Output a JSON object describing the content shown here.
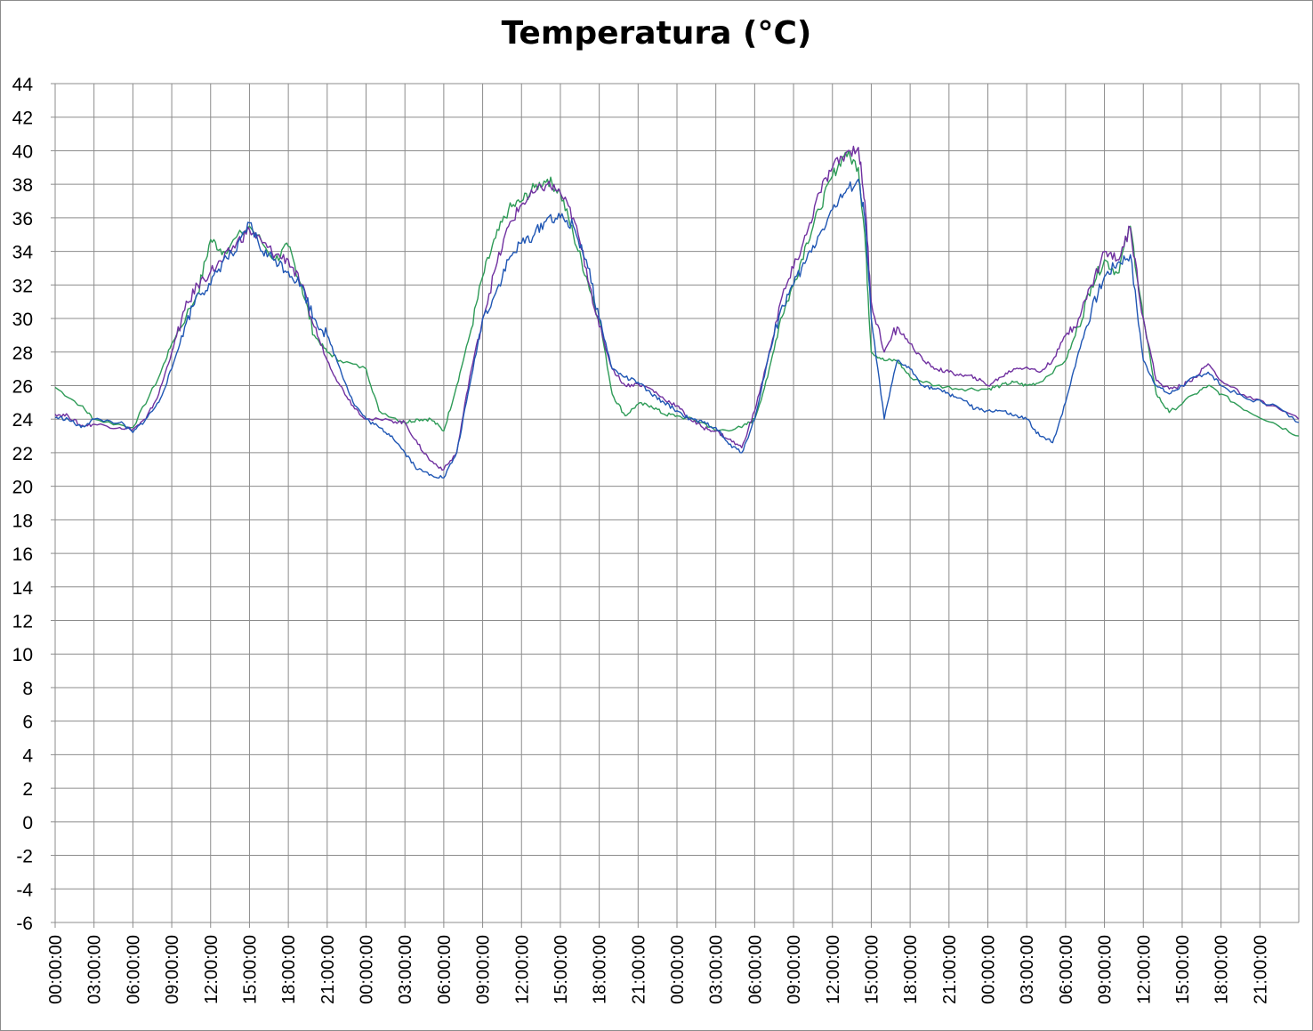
{
  "chart_data": {
    "type": "line",
    "title": "Temperatura (°C)",
    "xlabel": "",
    "ylabel": "",
    "ylim": [
      -6,
      44
    ],
    "y_ticks": [
      -6,
      -4,
      -2,
      0,
      2,
      4,
      6,
      8,
      10,
      12,
      14,
      16,
      18,
      20,
      22,
      24,
      26,
      28,
      30,
      32,
      34,
      36,
      38,
      40,
      42,
      44
    ],
    "x_unit": "hours from first tick",
    "xlim": [
      0,
      96
    ],
    "x_ticks": [
      "00:00:00",
      "03:00:00",
      "06:00:00",
      "09:00:00",
      "12:00:00",
      "15:00:00",
      "18:00:00",
      "21:00:00",
      "00:00:00",
      "03:00:00",
      "06:00:00",
      "09:00:00",
      "12:00:00",
      "15:00:00",
      "18:00:00",
      "21:00:00",
      "00:00:00",
      "03:00:00",
      "06:00:00",
      "09:00:00",
      "12:00:00",
      "15:00:00",
      "18:00:00",
      "21:00:00",
      "00:00:00",
      "03:00:00",
      "06:00:00",
      "09:00:00",
      "12:00:00",
      "15:00:00",
      "18:00:00",
      "21:00:00"
    ],
    "grid": true,
    "legend": "none",
    "series": [
      {
        "color": "#2e9b57",
        "points": [
          [
            0,
            25.9
          ],
          [
            2,
            24.8
          ],
          [
            3,
            24.0
          ],
          [
            6,
            23.5
          ],
          [
            8,
            26.5
          ],
          [
            9,
            28.5
          ],
          [
            11,
            31.5
          ],
          [
            12,
            34.7
          ],
          [
            13,
            34.0
          ],
          [
            15,
            35.5
          ],
          [
            17,
            33.5
          ],
          [
            18,
            34.3
          ],
          [
            19,
            32.0
          ],
          [
            20,
            29.0
          ],
          [
            21,
            28.0
          ],
          [
            22,
            27.5
          ],
          [
            24,
            27.0
          ],
          [
            25,
            24.5
          ],
          [
            27,
            23.8
          ],
          [
            28,
            24.0
          ],
          [
            29,
            24.0
          ],
          [
            30,
            23.3
          ],
          [
            31,
            26.0
          ],
          [
            32,
            29.0
          ],
          [
            33,
            32.5
          ],
          [
            34,
            34.8
          ],
          [
            35,
            36.5
          ],
          [
            36,
            37.0
          ],
          [
            37,
            37.8
          ],
          [
            38,
            38.3
          ],
          [
            39,
            37.5
          ],
          [
            40,
            35.0
          ],
          [
            41,
            32.5
          ],
          [
            42,
            30.0
          ],
          [
            43,
            25.5
          ],
          [
            44,
            24.2
          ],
          [
            45,
            24.9
          ],
          [
            46,
            24.8
          ],
          [
            47,
            24.3
          ],
          [
            48,
            24.2
          ],
          [
            50,
            23.8
          ],
          [
            51,
            23.3
          ],
          [
            53,
            23.5
          ],
          [
            54,
            24.0
          ],
          [
            55,
            26.5
          ],
          [
            56,
            30.0
          ],
          [
            57,
            32.0
          ],
          [
            58,
            34.5
          ],
          [
            59,
            36.5
          ],
          [
            60,
            38.5
          ],
          [
            61,
            39.9
          ],
          [
            62,
            39.0
          ],
          [
            62.5,
            35.0
          ],
          [
            63,
            28.0
          ],
          [
            64,
            27.5
          ],
          [
            65,
            27.5
          ],
          [
            66,
            26.5
          ],
          [
            68,
            26.0
          ],
          [
            70,
            25.8
          ],
          [
            72,
            25.8
          ],
          [
            73,
            26.0
          ],
          [
            74,
            26.2
          ],
          [
            75,
            26.0
          ],
          [
            76,
            26.2
          ],
          [
            78,
            27.5
          ],
          [
            79,
            29.5
          ],
          [
            80,
            32.0
          ],
          [
            81,
            33.5
          ],
          [
            82,
            32.7
          ],
          [
            83,
            35.5
          ],
          [
            84,
            30.0
          ],
          [
            85,
            25.5
          ],
          [
            86,
            24.4
          ],
          [
            88,
            25.5
          ],
          [
            89,
            26.0
          ],
          [
            90,
            25.5
          ],
          [
            92,
            24.5
          ],
          [
            94,
            23.8
          ],
          [
            96,
            23.0
          ]
        ]
      },
      {
        "color": "#7030a0",
        "points": [
          [
            0,
            24.3
          ],
          [
            1,
            24.2
          ],
          [
            2,
            23.6
          ],
          [
            3,
            23.7
          ],
          [
            5,
            23.5
          ],
          [
            6,
            23.4
          ],
          [
            7,
            24.0
          ],
          [
            8,
            25.5
          ],
          [
            9,
            28.0
          ],
          [
            10,
            30.5
          ],
          [
            11,
            32.0
          ],
          [
            12,
            32.8
          ],
          [
            13,
            33.5
          ],
          [
            14,
            34.5
          ],
          [
            15,
            35.3
          ],
          [
            16,
            34.5
          ],
          [
            17,
            33.8
          ],
          [
            18,
            33.5
          ],
          [
            19,
            32.0
          ],
          [
            20,
            29.5
          ],
          [
            21,
            27.5
          ],
          [
            22,
            26.0
          ],
          [
            23,
            24.8
          ],
          [
            24,
            24.0
          ],
          [
            26,
            23.9
          ],
          [
            27,
            23.8
          ],
          [
            28,
            22.5
          ],
          [
            29,
            21.5
          ],
          [
            30,
            21.0
          ],
          [
            31,
            22.0
          ],
          [
            32,
            26.5
          ],
          [
            33,
            30.0
          ],
          [
            34,
            33.0
          ],
          [
            35,
            35.5
          ],
          [
            36,
            36.8
          ],
          [
            37,
            37.5
          ],
          [
            38,
            38.0
          ],
          [
            39,
            37.5
          ],
          [
            40,
            36.0
          ],
          [
            41,
            33.0
          ],
          [
            42,
            29.5
          ],
          [
            43,
            27.0
          ],
          [
            44,
            26.0
          ],
          [
            45,
            26.1
          ],
          [
            46,
            25.8
          ],
          [
            47,
            25.2
          ],
          [
            48,
            24.8
          ],
          [
            49,
            24.0
          ],
          [
            50,
            23.5
          ],
          [
            51,
            23.3
          ],
          [
            52,
            22.8
          ],
          [
            53,
            22.3
          ],
          [
            54,
            24.5
          ],
          [
            55,
            27.5
          ],
          [
            56,
            31.0
          ],
          [
            57,
            33.0
          ],
          [
            58,
            35.0
          ],
          [
            59,
            37.5
          ],
          [
            60,
            39.0
          ],
          [
            61,
            39.8
          ],
          [
            62,
            40.2
          ],
          [
            62.5,
            37.0
          ],
          [
            63,
            31.0
          ],
          [
            64,
            28.0
          ],
          [
            65,
            29.5
          ],
          [
            66,
            28.5
          ],
          [
            67,
            27.5
          ],
          [
            68,
            27.0
          ],
          [
            69,
            26.8
          ],
          [
            70,
            26.6
          ],
          [
            71,
            26.5
          ],
          [
            72,
            26.0
          ],
          [
            73,
            26.5
          ],
          [
            74,
            27.0
          ],
          [
            75,
            27.1
          ],
          [
            76,
            26.8
          ],
          [
            77,
            27.5
          ],
          [
            78,
            29.0
          ],
          [
            79,
            30.0
          ],
          [
            80,
            32.0
          ],
          [
            81,
            34.0
          ],
          [
            82,
            33.5
          ],
          [
            83,
            35.4
          ],
          [
            84,
            30.0
          ],
          [
            85,
            26.3
          ],
          [
            86,
            25.8
          ],
          [
            87,
            26.0
          ],
          [
            88,
            26.5
          ],
          [
            89,
            27.3
          ],
          [
            90,
            26.3
          ],
          [
            92,
            25.3
          ],
          [
            94,
            24.8
          ],
          [
            96,
            24.0
          ]
        ]
      },
      {
        "color": "#1f56b4",
        "points": [
          [
            0,
            24.1
          ],
          [
            1,
            24.0
          ],
          [
            2,
            23.5
          ],
          [
            3,
            24.0
          ],
          [
            5,
            23.8
          ],
          [
            6,
            23.2
          ],
          [
            7,
            24.0
          ],
          [
            8,
            25.0
          ],
          [
            9,
            27.0
          ],
          [
            10,
            29.5
          ],
          [
            11,
            31.5
          ],
          [
            12,
            32.0
          ],
          [
            13,
            33.5
          ],
          [
            14,
            34.0
          ],
          [
            15,
            35.7
          ],
          [
            16,
            34.0
          ],
          [
            17,
            33.5
          ],
          [
            18,
            32.8
          ],
          [
            19,
            32.0
          ],
          [
            20,
            30.0
          ],
          [
            21,
            29.0
          ],
          [
            22,
            27.0
          ],
          [
            23,
            25.0
          ],
          [
            24,
            24.0
          ],
          [
            25,
            23.5
          ],
          [
            26,
            23.0
          ],
          [
            27,
            22.0
          ],
          [
            28,
            21.0
          ],
          [
            29,
            20.7
          ],
          [
            30,
            20.5
          ],
          [
            31,
            22.0
          ],
          [
            32,
            26.0
          ],
          [
            33,
            30.0
          ],
          [
            34,
            31.5
          ],
          [
            35,
            33.5
          ],
          [
            36,
            34.5
          ],
          [
            37,
            35.0
          ],
          [
            38,
            36.0
          ],
          [
            39,
            36.0
          ],
          [
            40,
            35.5
          ],
          [
            41,
            33.5
          ],
          [
            42,
            30.0
          ],
          [
            43,
            27.0
          ],
          [
            44,
            26.5
          ],
          [
            45,
            26.2
          ],
          [
            46,
            25.5
          ],
          [
            47,
            25.0
          ],
          [
            48,
            24.5
          ],
          [
            49,
            24.0
          ],
          [
            50,
            23.8
          ],
          [
            51,
            23.5
          ],
          [
            52,
            22.5
          ],
          [
            53,
            22.0
          ],
          [
            54,
            24.0
          ],
          [
            55,
            27.5
          ],
          [
            56,
            30.5
          ],
          [
            57,
            32.0
          ],
          [
            58,
            33.5
          ],
          [
            59,
            35.0
          ],
          [
            60,
            36.5
          ],
          [
            61,
            37.5
          ],
          [
            62,
            38.3
          ],
          [
            62.5,
            36.0
          ],
          [
            63,
            30.0
          ],
          [
            64,
            24.0
          ],
          [
            65,
            27.5
          ],
          [
            66,
            27.0
          ],
          [
            67,
            26.0
          ],
          [
            68,
            25.8
          ],
          [
            69,
            25.5
          ],
          [
            70,
            25.2
          ],
          [
            71,
            24.6
          ],
          [
            72,
            24.5
          ],
          [
            73,
            24.5
          ],
          [
            74,
            24.2
          ],
          [
            75,
            24.0
          ],
          [
            76,
            23.0
          ],
          [
            77,
            22.6
          ],
          [
            78,
            25.0
          ],
          [
            79,
            28.0
          ],
          [
            80,
            30.5
          ],
          [
            81,
            32.5
          ],
          [
            82,
            33.3
          ],
          [
            83,
            33.8
          ],
          [
            84,
            27.5
          ],
          [
            85,
            26.0
          ],
          [
            86,
            25.5
          ],
          [
            87,
            26.0
          ],
          [
            88,
            26.5
          ],
          [
            89,
            26.8
          ],
          [
            90,
            26.0
          ],
          [
            92,
            25.2
          ],
          [
            94,
            24.9
          ],
          [
            96,
            23.8
          ]
        ]
      }
    ]
  }
}
